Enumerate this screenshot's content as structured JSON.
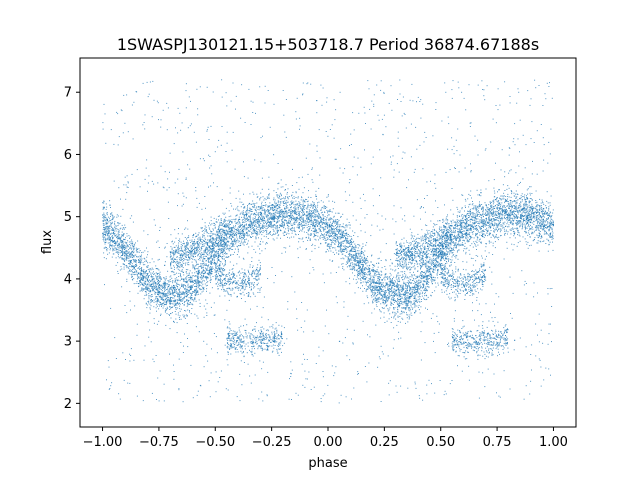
{
  "chart_data": {
    "type": "scatter",
    "title": "1SWASPJ130121.15+503718.7 Period 36874.67188s",
    "xlabel": "phase",
    "ylabel": "flux",
    "xlim": [
      -1.1,
      1.1
    ],
    "ylim": [
      1.62,
      7.55
    ],
    "x_ticks": [
      -1.0,
      -0.75,
      -0.5,
      -0.25,
      0.0,
      0.25,
      0.5,
      0.75,
      1.0
    ],
    "x_tick_labels": [
      "−1.00",
      "−0.75",
      "−0.50",
      "−0.25",
      "0.00",
      "0.25",
      "0.50",
      "0.75",
      "1.00"
    ],
    "y_ticks": [
      2,
      3,
      4,
      5,
      6,
      7
    ],
    "y_tick_labels": [
      "2",
      "3",
      "4",
      "5",
      "6",
      "7"
    ],
    "grid": false,
    "point_color": "#1f77b4",
    "series": [
      {
        "name": "",
        "phase_range": [
          -1.0,
          1.0
        ],
        "periodic": true,
        "bands": [
          {
            "x": [
              0.0,
              0.05,
              0.1,
              0.15,
              0.2,
              0.25,
              0.3,
              0.35,
              0.4,
              0.45,
              0.5,
              0.55,
              0.6,
              0.65,
              0.7,
              0.75,
              0.8,
              0.85,
              0.9,
              0.95,
              1.0
            ],
            "y": [
              4.85,
              4.7,
              4.45,
              4.2,
              3.95,
              3.8,
              3.75,
              3.75,
              3.85,
              4.1,
              4.4,
              4.65,
              4.8,
              4.9,
              4.95,
              5.0,
              5.05,
              5.05,
              5.0,
              4.95,
              4.85
            ],
            "spread": 0.18,
            "count": 7800
          },
          {
            "x": [
              0.3,
              0.35,
              0.4,
              0.45,
              0.5,
              0.55
            ],
            "y": [
              4.35,
              4.4,
              4.45,
              4.55,
              4.65,
              4.75
            ],
            "spread": 0.15,
            "count": 1300
          },
          {
            "x": [
              0.5,
              0.55,
              0.6,
              0.65,
              0.7
            ],
            "y": [
              4.05,
              3.95,
              3.9,
              3.95,
              4.05
            ],
            "spread": 0.12,
            "count": 700
          },
          {
            "x": [
              0.55,
              0.6,
              0.65,
              0.7,
              0.75,
              0.8
            ],
            "y": [
              3.0,
              3.0,
              2.98,
              3.0,
              3.02,
              3.05
            ],
            "spread": 0.12,
            "count": 800
          }
        ],
        "scatter_points": 1200
      }
    ]
  }
}
